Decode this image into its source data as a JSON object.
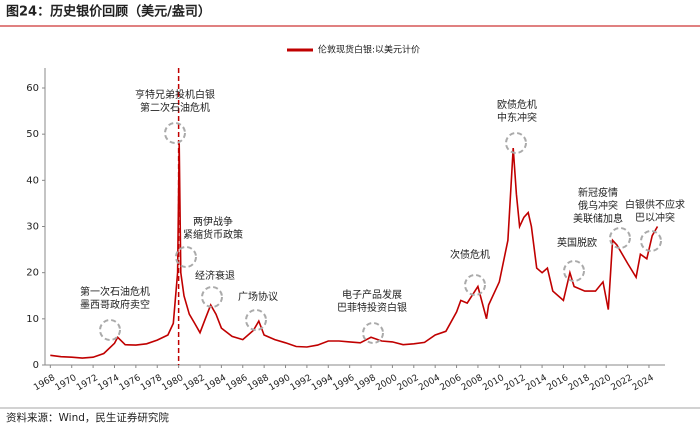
{
  "chart_data": {
    "type": "line",
    "title": "图24：历史银价回顾（美元/盎司）",
    "source": "资料来源：Wind，民生证券研究院",
    "xlim": [
      1967.5,
      2025.5
    ],
    "xticks": [
      1968,
      1970,
      1972,
      1974,
      1976,
      1978,
      1980,
      1982,
      1984,
      1986,
      1988,
      1990,
      1992,
      1994,
      1996,
      1998,
      2000,
      2002,
      2004,
      2006,
      2008,
      2010,
      2012,
      2014,
      2016,
      2018,
      2020,
      2022,
      2024
    ],
    "ylim": [
      0,
      60
    ],
    "yticks": [
      0,
      10,
      20,
      30,
      40,
      50,
      60
    ],
    "reference_line_x": 1980,
    "legend": "top",
    "series": [
      {
        "name": "伦敦现货白银:以美元计价",
        "color": "#c00000",
        "x": [
          1968,
          1969,
          1970,
          1971,
          1972,
          1973,
          1974,
          1974.3,
          1975,
          1976,
          1977,
          1978,
          1979,
          1979.5,
          1979.9,
          1980.05,
          1980.2,
          1980.5,
          1981,
          1981.5,
          1982,
          1982.5,
          1983,
          1983.5,
          1984,
          1985,
          1986,
          1987,
          1987.5,
          1988,
          1989,
          1990,
          1991,
          1992,
          1993,
          1994,
          1995,
          1996,
          1997,
          1998,
          1999,
          2000,
          2001,
          2002,
          2003,
          2004,
          2005,
          2006,
          2006.4,
          2007,
          2008,
          2008.8,
          2009,
          2010,
          2010.8,
          2011.3,
          2011.6,
          2011.9,
          2012.3,
          2012.7,
          2013,
          2013.5,
          2014,
          2014.5,
          2015,
          2016,
          2016.6,
          2017,
          2018,
          2019,
          2019.7,
          2020.2,
          2020.6,
          2021,
          2022,
          2022.8,
          2023.2,
          2023.8,
          2024.3,
          2024.8
        ],
        "values": [
          2.1,
          1.8,
          1.7,
          1.5,
          1.7,
          2.5,
          4.7,
          6.0,
          4.4,
          4.3,
          4.6,
          5.4,
          6.5,
          9,
          20,
          48,
          20,
          15,
          11,
          9,
          7,
          10,
          13,
          11,
          8,
          6.2,
          5.5,
          7.5,
          9.5,
          6.5,
          5.5,
          4.8,
          4.0,
          3.9,
          4.3,
          5.2,
          5.2,
          5.0,
          4.8,
          6.0,
          5.2,
          5.0,
          4.4,
          4.6,
          4.9,
          6.5,
          7.3,
          11.5,
          14,
          13.4,
          17,
          10,
          13,
          18,
          27,
          47,
          37,
          30,
          32,
          33,
          30,
          21,
          20,
          21,
          16,
          14,
          20,
          17,
          16,
          16,
          18,
          12,
          27,
          26,
          22,
          19,
          24,
          23,
          28,
          30
        ]
      }
    ],
    "annotations": [
      {
        "lines": [
          "第一次石油危机",
          "墨西哥政府卖空"
        ]
      },
      {
        "lines": [
          "亨特兄弟投机白银",
          "第二次石油危机"
        ]
      },
      {
        "lines": [
          "两伊战争",
          "紧缩货币政策"
        ]
      },
      {
        "lines": [
          "经济衰退"
        ]
      },
      {
        "lines": [
          "广场协议"
        ]
      },
      {
        "lines": [
          "电子产品发展",
          "巴菲特投资白银"
        ]
      },
      {
        "lines": [
          "次债危机"
        ]
      },
      {
        "lines": [
          "欧债危机",
          "中东冲突"
        ]
      },
      {
        "lines": [
          "英国脱欧"
        ]
      },
      {
        "lines": [
          "新冠疫情",
          "俄乌冲突",
          "美联储加息"
        ]
      },
      {
        "lines": [
          "白银供不应求",
          "巴以冲突"
        ]
      }
    ]
  }
}
